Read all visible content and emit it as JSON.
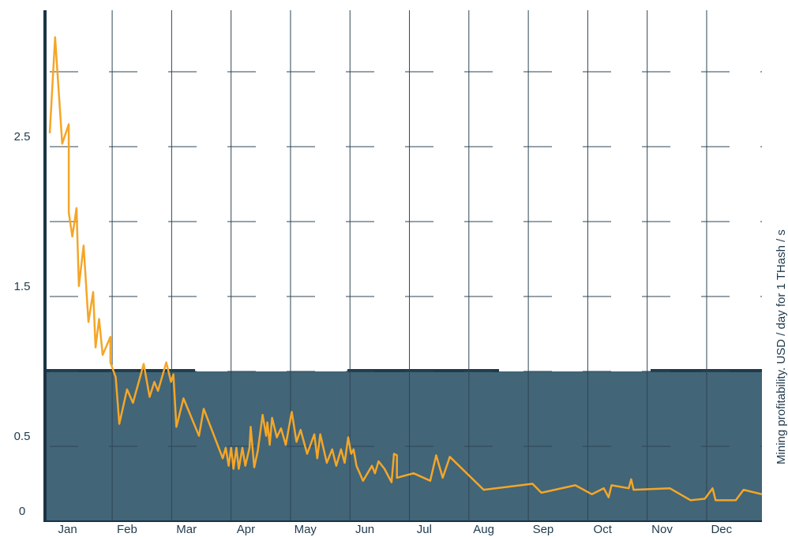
{
  "chart_data": {
    "type": "line",
    "y_axis_label": "Mining profitability. USD / day for 1 THash / s",
    "categories": [
      "Jan",
      "Feb",
      "Mar",
      "Apr",
      "May",
      "Jun",
      "Jul",
      "Aug",
      "Sep",
      "Oct",
      "Nov",
      "Dec"
    ],
    "x": [
      -0.05,
      0.04,
      0.16,
      0.27,
      0.27,
      0.33,
      0.4,
      0.44,
      0.52,
      0.6,
      0.68,
      0.72,
      0.78,
      0.84,
      0.97,
      0.97,
      1.06,
      1.12,
      1.25,
      1.35,
      1.53,
      1.63,
      1.71,
      1.77,
      1.91,
      1.99,
      2.03,
      2.08,
      2.2,
      2.46,
      2.54,
      2.86,
      2.91,
      2.96,
      3.0,
      3.04,
      3.09,
      3.13,
      3.19,
      3.24,
      3.31,
      3.33,
      3.39,
      3.45,
      3.53,
      3.59,
      3.61,
      3.65,
      3.69,
      3.77,
      3.84,
      3.92,
      4.02,
      4.1,
      4.17,
      4.28,
      4.4,
      4.45,
      4.5,
      4.61,
      4.7,
      4.77,
      4.85,
      4.91,
      4.97,
      5.02,
      5.06,
      5.11,
      5.22,
      5.37,
      5.42,
      5.48,
      5.58,
      5.7,
      5.74,
      5.79,
      5.79,
      6.07,
      6.35,
      6.45,
      6.56,
      6.68,
      7.25,
      8.07,
      8.22,
      8.79,
      9.07,
      9.27,
      9.35,
      9.4,
      9.69,
      9.73,
      9.77,
      10.38,
      10.73,
      10.97,
      11.1,
      11.15,
      11.49,
      11.62,
      11.93
    ],
    "values": [
      2.59,
      3.23,
      2.52,
      2.65,
      2.06,
      1.9,
      2.09,
      1.57,
      1.84,
      1.33,
      1.53,
      1.16,
      1.35,
      1.11,
      1.23,
      1.06,
      0.96,
      0.65,
      0.88,
      0.79,
      1.05,
      0.83,
      0.93,
      0.87,
      1.06,
      0.93,
      0.98,
      0.63,
      0.82,
      0.57,
      0.75,
      0.42,
      0.49,
      0.37,
      0.49,
      0.35,
      0.49,
      0.35,
      0.49,
      0.37,
      0.49,
      0.63,
      0.36,
      0.47,
      0.71,
      0.57,
      0.66,
      0.51,
      0.69,
      0.56,
      0.62,
      0.51,
      0.73,
      0.53,
      0.61,
      0.45,
      0.58,
      0.42,
      0.58,
      0.39,
      0.48,
      0.37,
      0.48,
      0.39,
      0.56,
      0.45,
      0.48,
      0.37,
      0.27,
      0.37,
      0.32,
      0.4,
      0.35,
      0.26,
      0.45,
      0.44,
      0.29,
      0.32,
      0.27,
      0.44,
      0.29,
      0.43,
      0.21,
      0.25,
      0.19,
      0.24,
      0.18,
      0.22,
      0.16,
      0.24,
      0.22,
      0.28,
      0.21,
      0.22,
      0.14,
      0.15,
      0.22,
      0.14,
      0.14,
      0.21,
      0.18
    ],
    "color": "#f4a628",
    "xlim": [
      -0.13,
      11.93
    ],
    "xticks": [
      1,
      2,
      3,
      4,
      5,
      6,
      7,
      8,
      9,
      10,
      11
    ],
    "ylim": [
      0,
      3.4
    ],
    "yticks": [
      0,
      0.5,
      1.5,
      2.5
    ],
    "ygrid": [
      0.5,
      1,
      1.5,
      2,
      2.5,
      3
    ],
    "highlight_range": [
      0,
      1
    ],
    "highlight_color": "#426577"
  }
}
